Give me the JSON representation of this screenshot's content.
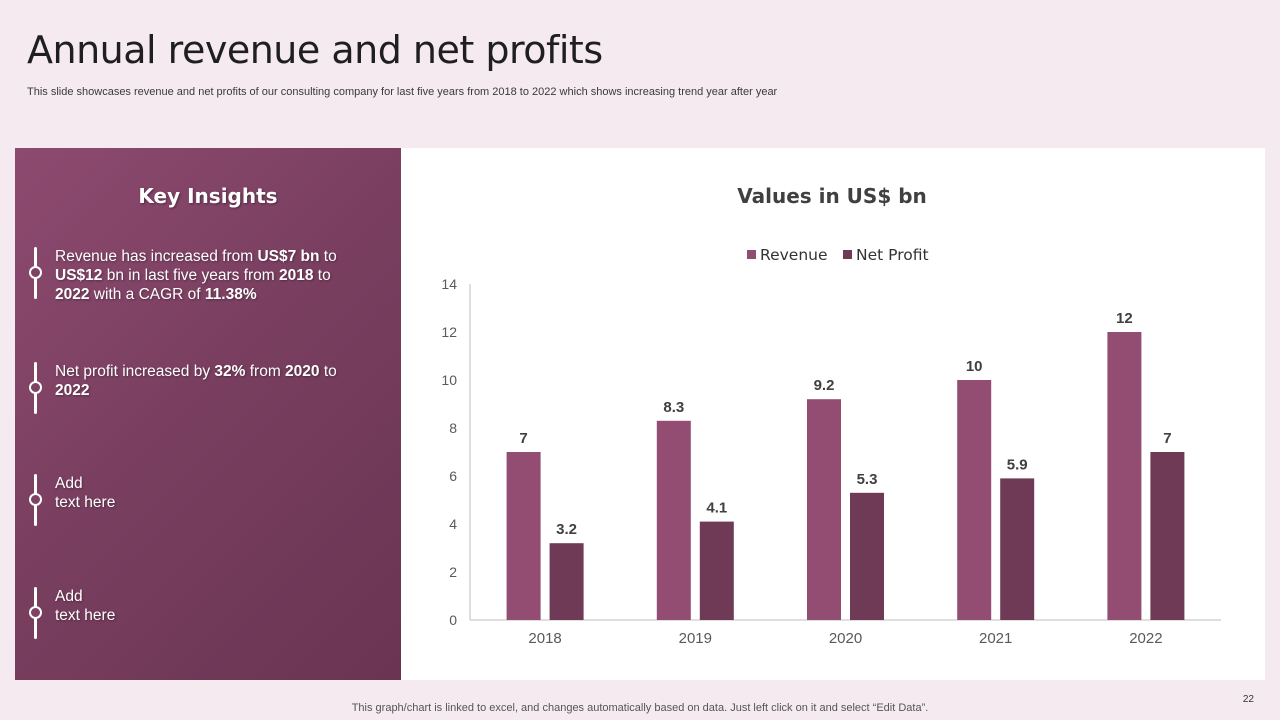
{
  "slide": {
    "title": "Annual revenue and net profits",
    "subtitle": "This slide showcases revenue and net profits of our consulting company for last five years from 2018 to 2022 which shows increasing trend year after year",
    "footer": "This graph/chart is linked to excel,  and changes automatically based on data. Just left click on it and select “Edit Data”.",
    "page_number": "22"
  },
  "insights": {
    "heading": "Key Insights",
    "items": [
      {
        "parts": [
          [
            "Revenue  has increased from ",
            false
          ],
          [
            "US$7 bn",
            true
          ],
          [
            " to ",
            false
          ],
          [
            "US$12",
            true
          ],
          [
            " bn in last five years from ",
            false
          ],
          [
            "2018",
            true
          ],
          [
            " to ",
            false
          ],
          [
            "2022",
            true
          ],
          [
            " with a CAGR of ",
            false
          ],
          [
            "11.38%",
            true
          ]
        ]
      },
      {
        "parts": [
          [
            "Net profit increased by ",
            false
          ],
          [
            "32%",
            true
          ],
          [
            " from ",
            false
          ],
          [
            "2020",
            true
          ],
          [
            " to ",
            false
          ],
          [
            "2022",
            true
          ]
        ]
      },
      {
        "parts": [
          [
            "Add",
            false
          ],
          [
            "\n",
            false
          ],
          [
            "text here",
            false
          ]
        ]
      },
      {
        "parts": [
          [
            "Add",
            false
          ],
          [
            "\n",
            false
          ],
          [
            "text here",
            false
          ]
        ]
      }
    ]
  },
  "colors": {
    "revenue": "#934d73",
    "net_profit": "#6e3a55"
  },
  "chart_data": {
    "type": "bar",
    "title": "Values in US$ bn",
    "categories": [
      "2018",
      "2019",
      "2020",
      "2021",
      "2022"
    ],
    "series": [
      {
        "name": "Revenue",
        "values": [
          7,
          8.3,
          9.2,
          10,
          12
        ]
      },
      {
        "name": "Net Profit",
        "values": [
          3.2,
          4.1,
          5.3,
          5.9,
          7
        ]
      }
    ],
    "ylim": [
      0,
      14
    ],
    "yticks": [
      0,
      2,
      4,
      6,
      8,
      10,
      12,
      14
    ],
    "legend": "top-center",
    "grid": false,
    "data_labels": true
  }
}
